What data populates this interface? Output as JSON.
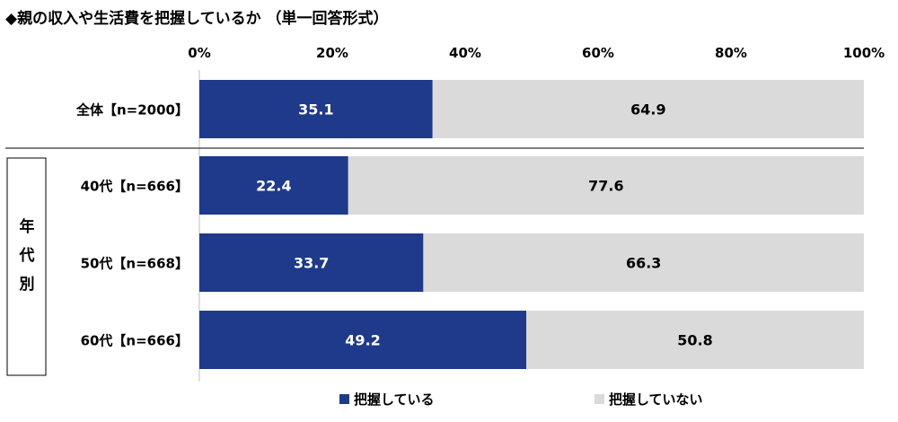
{
  "title": "◆親の収入や生活費を把握しているか （単一回答形式）",
  "colors": {
    "known": "#1f3a8a",
    "unknown": "#dadada",
    "grid": "#bfbfbf"
  },
  "group_label": [
    "年",
    "代",
    "別"
  ],
  "chart_data": {
    "type": "bar",
    "orientation": "horizontal",
    "stacked": true,
    "percent": true,
    "title": "◆親の収入や生活費を把握しているか （単一回答形式）",
    "categories": [
      "全体【n=2000】",
      "40代【n=666】",
      "50代【n=668】",
      "60代【n=666】"
    ],
    "group": {
      "label": "年代別",
      "members": [
        "40代【n=666】",
        "50代【n=668】",
        "60代【n=666】"
      ]
    },
    "series": [
      {
        "name": "把握している",
        "values": [
          35.1,
          22.4,
          33.7,
          49.2
        ]
      },
      {
        "name": "把握していない",
        "values": [
          64.9,
          77.6,
          66.3,
          50.8
        ]
      }
    ],
    "xlim": [
      0,
      100
    ],
    "xticks": [
      "0%",
      "20%",
      "40%",
      "60%",
      "80%",
      "100%"
    ],
    "legend": "bottom"
  }
}
